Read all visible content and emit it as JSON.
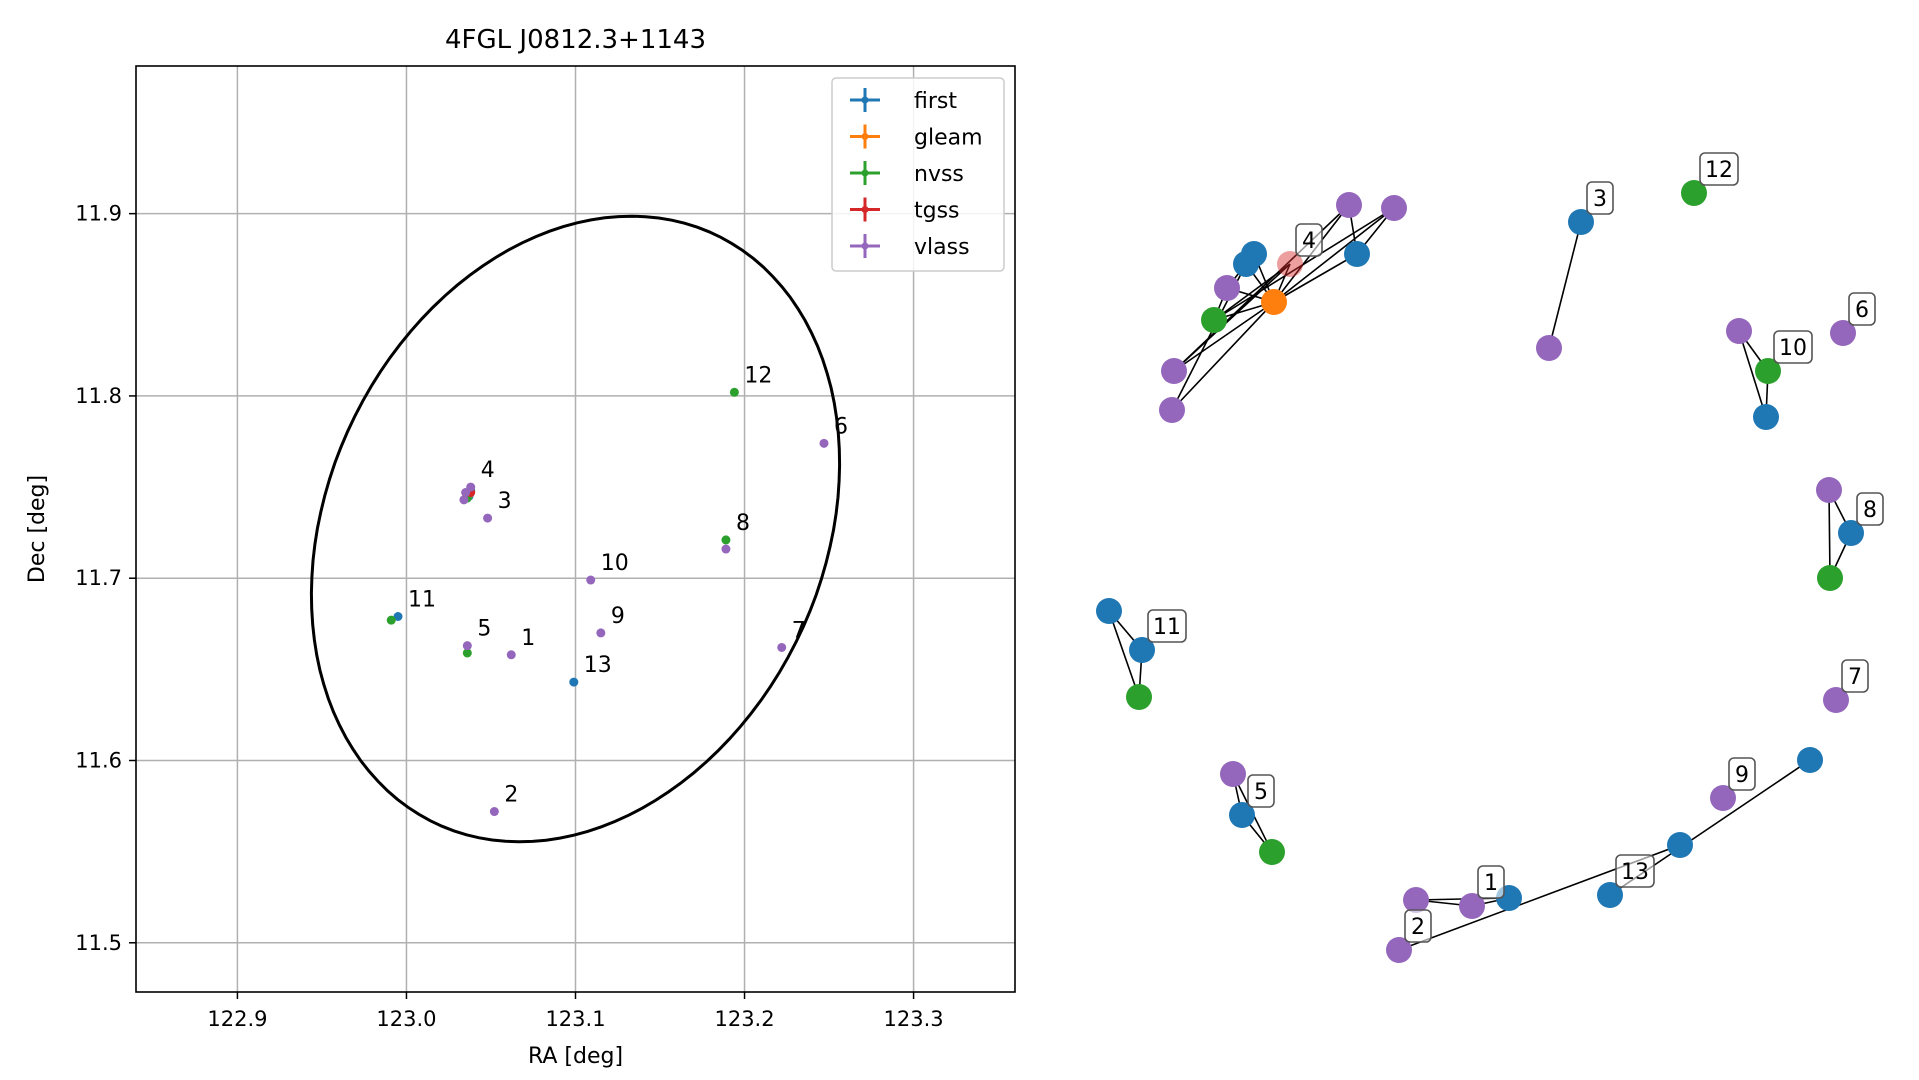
{
  "chart_data": [
    {
      "type": "scatter",
      "title": "4FGL J0812.3+1143",
      "xlabel": "RA [deg]",
      "ylabel": "Dec [deg]",
      "xlim": [
        122.84,
        123.36
      ],
      "ylim": [
        11.473,
        11.981
      ],
      "xticks": [
        122.9,
        123.0,
        123.1,
        123.2,
        123.3
      ],
      "xtick_labels": [
        "122.9",
        "123.0",
        "123.1",
        "123.2",
        "123.3"
      ],
      "yticks": [
        11.5,
        11.6,
        11.7,
        11.8,
        11.9
      ],
      "ytick_labels": [
        "11.5",
        "11.6",
        "11.7",
        "11.8",
        "11.9"
      ],
      "grid": true,
      "legend_position": "top-right",
      "colors": {
        "first": "#1f77b4",
        "gleam": "#ff7f0e",
        "nvss": "#2ca02c",
        "tgss": "#d62728",
        "vlass": "#9467bd"
      },
      "series": [
        {
          "name": "first",
          "points": [
            {
              "ra": 122.995,
              "dec": 11.679
            },
            {
              "ra": 123.099,
              "dec": 11.643
            },
            {
              "ra": 123.038,
              "dec": 11.748
            },
            {
              "ra": 123.037,
              "dec": 11.745
            }
          ]
        },
        {
          "name": "gleam",
          "points": [
            {
              "ra": 123.037,
              "dec": 11.746
            }
          ]
        },
        {
          "name": "nvss",
          "points": [
            {
              "ra": 123.194,
              "dec": 11.802
            },
            {
              "ra": 123.189,
              "dec": 11.721
            },
            {
              "ra": 122.991,
              "dec": 11.677
            },
            {
              "ra": 123.036,
              "dec": 11.659
            },
            {
              "ra": 123.036,
              "dec": 11.744
            }
          ]
        },
        {
          "name": "tgss",
          "points": [
            {
              "ra": 123.038,
              "dec": 11.747
            }
          ]
        },
        {
          "name": "vlass",
          "points": [
            {
              "ra": 123.038,
              "dec": 11.75
            },
            {
              "ra": 123.035,
              "dec": 11.747
            },
            {
              "ra": 123.034,
              "dec": 11.743
            },
            {
              "ra": 123.048,
              "dec": 11.733
            },
            {
              "ra": 123.247,
              "dec": 11.774
            },
            {
              "ra": 123.189,
              "dec": 11.716
            },
            {
              "ra": 123.109,
              "dec": 11.699
            },
            {
              "ra": 123.115,
              "dec": 11.67
            },
            {
              "ra": 123.222,
              "dec": 11.662
            },
            {
              "ra": 123.036,
              "dec": 11.663
            },
            {
              "ra": 123.062,
              "dec": 11.658
            },
            {
              "ra": 123.052,
              "dec": 11.572
            }
          ]
        }
      ],
      "ellipse": {
        "center_ra": 123.1,
        "center_dec": 11.727,
        "semi_major_deg": 0.182,
        "semi_minor_deg": 0.144,
        "angle_deg": 57
      },
      "annotations": [
        {
          "text": "1",
          "ra": 123.062,
          "dec": 11.658
        },
        {
          "text": "2",
          "ra": 123.052,
          "dec": 11.572
        },
        {
          "text": "3",
          "ra": 123.048,
          "dec": 11.733
        },
        {
          "text": "4",
          "ra": 123.038,
          "dec": 11.75
        },
        {
          "text": "5",
          "ra": 123.036,
          "dec": 11.663
        },
        {
          "text": "6",
          "ra": 123.247,
          "dec": 11.774
        },
        {
          "text": "7",
          "ra": 123.222,
          "dec": 11.662
        },
        {
          "text": "8",
          "ra": 123.189,
          "dec": 11.721
        },
        {
          "text": "9",
          "ra": 123.115,
          "dec": 11.67
        },
        {
          "text": "10",
          "ra": 123.109,
          "dec": 11.699
        },
        {
          "text": "11",
          "ra": 122.995,
          "dec": 11.679
        },
        {
          "text": "12",
          "ra": 123.194,
          "dec": 11.802
        },
        {
          "text": "13",
          "ra": 123.099,
          "dec": 11.643
        }
      ]
    },
    {
      "type": "network",
      "title": "",
      "nodes": [
        {
          "id": "n1",
          "catalog": "first"
        },
        {
          "id": "n2",
          "catalog": "first"
        },
        {
          "id": "n3",
          "catalog": "vlass"
        },
        {
          "id": "n4",
          "catalog": "vlass"
        },
        {
          "id": "n5",
          "catalog": "vlass"
        },
        {
          "id": "n6",
          "catalog": "vlass"
        },
        {
          "id": "n7",
          "catalog": "nvss"
        },
        {
          "id": "n8",
          "catalog": "gleam"
        },
        {
          "id": "n9",
          "catalog": "tgss"
        },
        {
          "id": "n10",
          "catalog": "vlass"
        },
        {
          "id": "n11",
          "catalog": "first"
        },
        {
          "id": "n12",
          "catalog": "first"
        },
        {
          "id": "n13",
          "catalog": "vlass"
        },
        {
          "id": "n14",
          "catalog": "vlass"
        },
        {
          "id": "n15",
          "catalog": "nvss"
        },
        {
          "id": "n16",
          "catalog": "vlass"
        },
        {
          "id": "n17",
          "catalog": "nvss"
        },
        {
          "id": "n18",
          "catalog": "first"
        },
        {
          "id": "n19",
          "catalog": "vlass"
        },
        {
          "id": "n20",
          "catalog": "nvss"
        },
        {
          "id": "n21",
          "catalog": "first"
        },
        {
          "id": "n22",
          "catalog": "vlass"
        },
        {
          "id": "n23",
          "catalog": "first"
        },
        {
          "id": "n24",
          "catalog": "first"
        },
        {
          "id": "n25",
          "catalog": "nvss"
        },
        {
          "id": "n26",
          "catalog": "vlass"
        },
        {
          "id": "n27",
          "catalog": "first"
        },
        {
          "id": "n28",
          "catalog": "nvss"
        },
        {
          "id": "n29",
          "catalog": "vlass"
        },
        {
          "id": "n30",
          "catalog": "vlass"
        },
        {
          "id": "n31",
          "catalog": "first"
        },
        {
          "id": "n32",
          "catalog": "vlass"
        },
        {
          "id": "n33",
          "catalog": "first"
        },
        {
          "id": "n34",
          "catalog": "vlass"
        },
        {
          "id": "n35",
          "catalog": "first"
        },
        {
          "id": "n36",
          "catalog": "first"
        }
      ],
      "edges": [
        [
          "n1",
          "n8"
        ],
        [
          "n2",
          "n8"
        ],
        [
          "n3",
          "n8"
        ],
        [
          "n4",
          "n8"
        ],
        [
          "n5",
          "n8"
        ],
        [
          "n6",
          "n8"
        ],
        [
          "n7",
          "n8"
        ],
        [
          "n9",
          "n8"
        ],
        [
          "n10",
          "n8"
        ],
        [
          "n11",
          "n8"
        ],
        [
          "n1",
          "n3"
        ],
        [
          "n3",
          "n7"
        ],
        [
          "n7",
          "n9"
        ],
        [
          "n2",
          "n4"
        ],
        [
          "n2",
          "n5"
        ],
        [
          "n4",
          "n6"
        ],
        [
          "n5",
          "n7"
        ],
        [
          "n10",
          "n11"
        ],
        [
          "n6",
          "n9"
        ],
        [
          "n12",
          "n13"
        ],
        [
          "n16",
          "n17"
        ],
        [
          "n16",
          "n18"
        ],
        [
          "n17",
          "n18"
        ],
        [
          "n19",
          "n20"
        ],
        [
          "n19",
          "n21"
        ],
        [
          "n20",
          "n21"
        ],
        [
          "n23",
          "n24"
        ],
        [
          "n23",
          "n25"
        ],
        [
          "n24",
          "n25"
        ],
        [
          "n26",
          "n27"
        ],
        [
          "n26",
          "n28"
        ],
        [
          "n27",
          "n28"
        ],
        [
          "n29",
          "n30"
        ],
        [
          "n29",
          "n31"
        ],
        [
          "n30",
          "n31"
        ],
        [
          "n33",
          "n34"
        ],
        [
          "n35",
          "n36"
        ]
      ],
      "labels": [
        {
          "text": "4",
          "node": "n9"
        },
        {
          "text": "3",
          "node": "n12"
        },
        {
          "text": "12",
          "node": "n15"
        },
        {
          "text": "6",
          "node": "n14"
        },
        {
          "text": "10",
          "node": "n17"
        },
        {
          "text": "8",
          "node": "n21"
        },
        {
          "text": "11",
          "node": "n24"
        },
        {
          "text": "7",
          "node": "n22"
        },
        {
          "text": "9",
          "node": "n32"
        },
        {
          "text": "5",
          "node": "n27"
        },
        {
          "text": "13",
          "node": "n35"
        },
        {
          "text": "1",
          "node": "n30"
        },
        {
          "text": "2",
          "node": "n34"
        }
      ]
    }
  ]
}
